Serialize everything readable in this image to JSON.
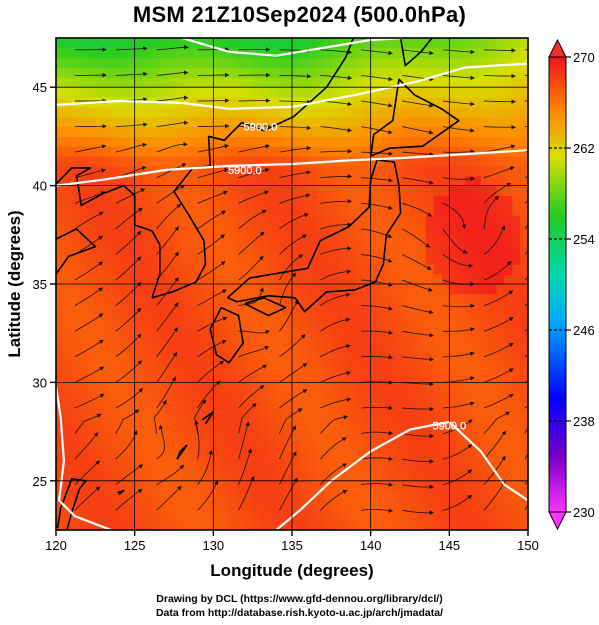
{
  "title": "MSM 21Z10Sep2024 (500.0hPa)",
  "chart_data": {
    "type": "heatmap",
    "x": {
      "label": "Longitude (degrees)",
      "min": 120,
      "max": 150,
      "ticks": [
        120,
        125,
        130,
        135,
        140,
        145,
        150
      ],
      "tick_labels": [
        "120",
        "125",
        "130",
        "135",
        "140",
        "145",
        "150"
      ]
    },
    "y": {
      "label": "Latitude  (degrees)",
      "min": 22.5,
      "max": 47.5,
      "ticks": [
        25,
        30,
        35,
        40,
        45
      ],
      "tick_labels": [
        "25",
        "30",
        "35",
        "40",
        "45"
      ]
    },
    "colorbar": {
      "min": 230,
      "max": 270,
      "tick_values": [
        230,
        238,
        246,
        254,
        262,
        270
      ],
      "tick_labels": [
        "230",
        "238",
        "246",
        "254",
        "262",
        "270"
      ]
    },
    "contours": [
      {
        "label": "5900.0",
        "lon": 133.0,
        "lat": 43.0
      },
      {
        "label": "5900.0",
        "lon": 132.0,
        "lat": 40.8
      },
      {
        "label": "5900.0",
        "lon": 145.0,
        "lat": 27.8
      }
    ],
    "vortices": [
      {
        "lon": 146.5,
        "lat": 37.3
      },
      {
        "lon": 133.3,
        "lat": 33.0
      }
    ]
  },
  "credits": {
    "line1": "Drawing by DCL (https://www.gfd-dennou.org/library/dcl/)",
    "line2": "Data from http://database.rish.kyoto-u.ac.jp/arch/jmadata/"
  }
}
